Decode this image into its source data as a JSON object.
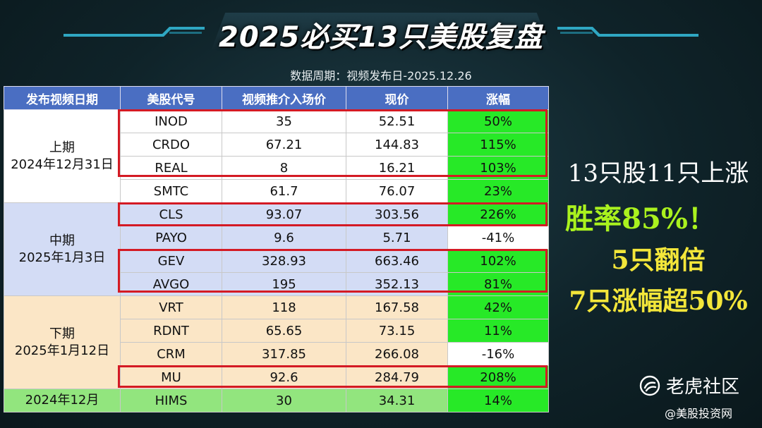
{
  "title": "2025必买13只美股复盘",
  "subtitle": "数据周期：视频发布日-2025.12.26",
  "table": {
    "headers": [
      "发布视频日期",
      "美股代号",
      "视频推介入场价",
      "现价",
      "涨幅"
    ],
    "groups": [
      {
        "period_name": "上期",
        "period_date": "2024年12月31日",
        "rows": [
          {
            "ticker": "INOD",
            "entry": "35",
            "current": "52.51",
            "change": "50%",
            "up": true
          },
          {
            "ticker": "CRDO",
            "entry": "67.21",
            "current": "144.83",
            "change": "115%",
            "up": true
          },
          {
            "ticker": "REAL",
            "entry": "8",
            "current": "16.21",
            "change": "103%",
            "up": true
          },
          {
            "ticker": "SMTC",
            "entry": "61.7",
            "current": "76.07",
            "change": "23%",
            "up": true
          }
        ]
      },
      {
        "period_name": "中期",
        "period_date": "2025年1月3日",
        "rows": [
          {
            "ticker": "CLS",
            "entry": "93.07",
            "current": "303.56",
            "change": "226%",
            "up": true
          },
          {
            "ticker": "PAYO",
            "entry": "9.6",
            "current": "5.71",
            "change": "-41%",
            "up": false
          },
          {
            "ticker": "GEV",
            "entry": "328.93",
            "current": "663.46",
            "change": "102%",
            "up": true
          },
          {
            "ticker": "AVGO",
            "entry": "195",
            "current": "352.13",
            "change": "81%",
            "up": true
          }
        ]
      },
      {
        "period_name": "下期",
        "period_date": "2025年1月12日",
        "rows": [
          {
            "ticker": "VRT",
            "entry": "118",
            "current": "167.58",
            "change": "42%",
            "up": true
          },
          {
            "ticker": "RDNT",
            "entry": "65.65",
            "current": "73.15",
            "change": "11%",
            "up": true
          },
          {
            "ticker": "CRM",
            "entry": "317.85",
            "current": "266.08",
            "change": "-16%",
            "up": false
          },
          {
            "ticker": "MU",
            "entry": "92.6",
            "current": "284.79",
            "change": "208%",
            "up": true
          }
        ]
      },
      {
        "period_name": "",
        "period_date": "2024年12月",
        "rows": [
          {
            "ticker": "HIMS",
            "entry": "30",
            "current": "34.31",
            "change": "14%",
            "up": true
          }
        ]
      }
    ]
  },
  "summary": {
    "line1": "13只股11只上涨",
    "line2": "胜率85%！",
    "line3": "5只翻倍",
    "line4": "7只涨幅超50%"
  },
  "brand": {
    "name": "老虎社区",
    "icon": "tiger-paw-icon"
  },
  "watermark": "@美股投资网",
  "colors": {
    "header_blue": "#4a6ec2",
    "up_green": "#27e927",
    "highlight_red": "#d41a24",
    "summary_green": "#aaf21e",
    "summary_yellow": "#f3e63a"
  }
}
